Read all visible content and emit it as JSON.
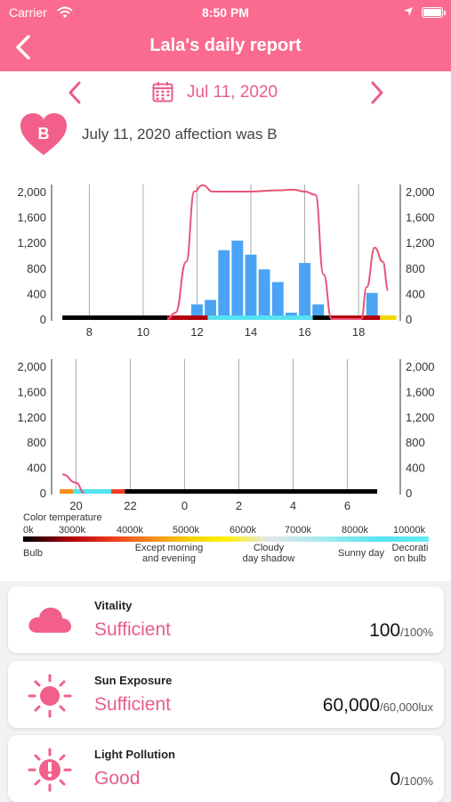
{
  "status_bar": {
    "carrier": "Carrier",
    "time": "8:50 PM"
  },
  "header": {
    "title": "Lala's daily report"
  },
  "date_nav": {
    "date": "Jul 11, 2020"
  },
  "affection": {
    "grade": "B",
    "text": "July 11, 2020 affection was B"
  },
  "colors": {
    "brand": "#fb6b8f",
    "accent": "#e85d88",
    "bars": "#4aa3f5",
    "line": "#e8557a"
  },
  "chart_data": [
    {
      "type": "bar",
      "x_axis_ticks": [
        "8",
        "10",
        "12",
        "14",
        "16",
        "18"
      ],
      "y_axis_ticks": [
        "2,000",
        "1,600",
        "1,200",
        "800",
        "400",
        "0"
      ],
      "ylim": [
        0,
        2000
      ],
      "bar_series": {
        "x": [
          12.0,
          12.5,
          13.0,
          13.5,
          14.0,
          14.5,
          15.0,
          15.5,
          16.0,
          16.5,
          18.5
        ],
        "values": [
          230,
          300,
          1080,
          1230,
          1010,
          780,
          580,
          100,
          880,
          230,
          410
        ]
      },
      "line_series": {
        "x": [
          10.9,
          11.2,
          11.6,
          11.9,
          12.2,
          12.6,
          13.0,
          14.0,
          15.0,
          15.6,
          16.0,
          16.4,
          16.7,
          17.0,
          18.1,
          18.3,
          18.6,
          18.9,
          19.1
        ],
        "values": [
          0,
          100,
          900,
          2000,
          2100,
          2000,
          2000,
          2000,
          2020,
          2030,
          2000,
          1950,
          700,
          0,
          0,
          500,
          1120,
          900,
          450
        ]
      },
      "color_temperature_strip": [
        {
          "from": 7.0,
          "to": 10.9,
          "color": "#000000"
        },
        {
          "from": 10.9,
          "to": 12.4,
          "color": "#b3000c"
        },
        {
          "from": 12.4,
          "to": 16.3,
          "color": "#55e3f0"
        },
        {
          "from": 16.3,
          "to": 17.0,
          "color": "#000000"
        },
        {
          "from": 17.0,
          "to": 18.8,
          "color": "#b3000c"
        },
        {
          "from": 18.8,
          "to": 19.4,
          "color": "#f5d700"
        }
      ]
    },
    {
      "type": "bar",
      "x_axis_ticks": [
        "20",
        "22",
        "0",
        "2",
        "4",
        "6"
      ],
      "y_axis_ticks": [
        "2,000",
        "1,600",
        "1,200",
        "800",
        "400",
        "0"
      ],
      "ylim": [
        0,
        2000
      ],
      "line_series": {
        "x": [
          19.5,
          20.0,
          20.3
        ],
        "values": [
          290,
          160,
          0
        ]
      },
      "color_temperature_strip": [
        {
          "from": 19.4,
          "to": 19.9,
          "color": "#f58f1a"
        },
        {
          "from": 19.9,
          "to": 21.3,
          "color": "#55e3f0"
        },
        {
          "from": 21.3,
          "to": 21.8,
          "color": "#f03c1e"
        },
        {
          "from": 21.8,
          "to": 31.1,
          "color": "#000000"
        }
      ]
    }
  ],
  "color_temperature": {
    "title": "Color temperature",
    "ticks": [
      "0k",
      "3000k",
      "4000k",
      "5000k",
      "6000k",
      "7000k",
      "8000k",
      "10000k"
    ],
    "labels": [
      "Bulb",
      "Except morning\nand evening",
      "Cloudy\nday shadow",
      "Sunny day",
      "Decorati\non bulb"
    ]
  },
  "cards": [
    {
      "label": "Vitality",
      "status": "Sufficient",
      "value": "100",
      "unit": "/100%",
      "icon": "cloud-icon"
    },
    {
      "label": "Sun Exposure",
      "status": "Sufficient",
      "value": "60,000",
      "unit": "/60,000lux",
      "icon": "sun-icon"
    },
    {
      "label": "Light Pollution",
      "status": "Good",
      "value": "0",
      "unit": "/100%",
      "icon": "sun-alert-icon"
    }
  ]
}
